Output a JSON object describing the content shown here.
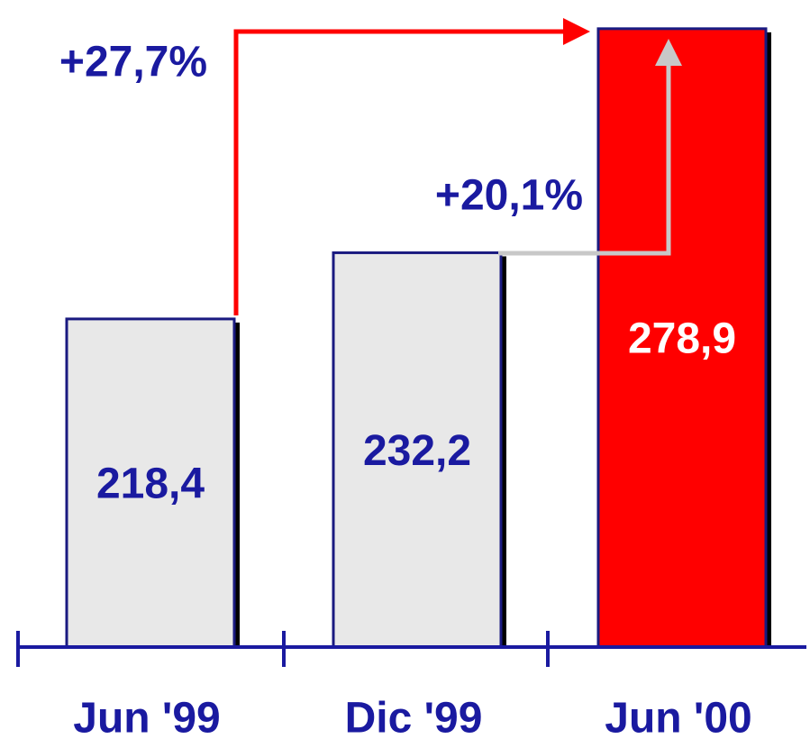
{
  "chart_data": {
    "type": "bar",
    "categories": [
      "Jun '99",
      "Dic '99",
      "Jun '00"
    ],
    "values": [
      218.4,
      232.2,
      278.9
    ],
    "value_labels": [
      "218,4",
      "232,2",
      "278,9"
    ],
    "colors": [
      "#e8e8e8",
      "#e8e8e8",
      "#ff0000"
    ],
    "label_colors": [
      "#1a1aa0",
      "#1a1aa0",
      "#ffffff"
    ],
    "ylim": [
      150,
      280
    ],
    "annotations": [
      "+27,7%",
      "+20,1%"
    ]
  }
}
